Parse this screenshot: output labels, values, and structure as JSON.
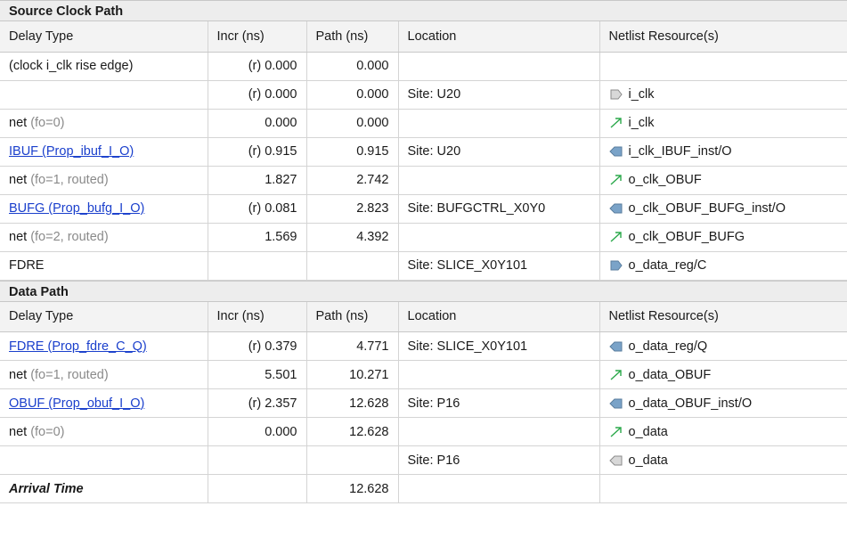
{
  "source": {
    "title": "Source Clock Path",
    "headers": [
      "Delay Type",
      "Incr (ns)",
      "Path (ns)",
      "Location",
      "Netlist Resource(s)"
    ],
    "rows": [
      {
        "type": "(clock i_clk rise edge)",
        "incr": "(r) 0.000",
        "path": "0.000",
        "loc": "",
        "res": "",
        "icon": ""
      },
      {
        "type": "",
        "incr": "(r) 0.000",
        "path": "0.000",
        "loc": "Site: U20",
        "res": "i_clk",
        "icon": "input-port-icon"
      },
      {
        "type": "net",
        "fo": "(fo=0)",
        "incr": "0.000",
        "path": "0.000",
        "loc": "",
        "res": "i_clk",
        "icon": "net-arrow-icon"
      },
      {
        "type": "IBUF (Prop_ibuf_I_O)",
        "link": true,
        "incr": "(r) 0.915",
        "path": "0.915",
        "loc": "Site: U20",
        "res": "i_clk_IBUF_inst/O",
        "icon": "cell-pin-icon"
      },
      {
        "type": "net",
        "fo": "(fo=1, routed)",
        "incr": "1.827",
        "path": "2.742",
        "loc": "",
        "res": "o_clk_OBUF",
        "icon": "net-arrow-icon"
      },
      {
        "type": "BUFG (Prop_bufg_I_O)",
        "link": true,
        "incr": "(r) 0.081",
        "path": "2.823",
        "loc": "Site: BUFGCTRL_X0Y0",
        "res": "o_clk_OBUF_BUFG_inst/O",
        "icon": "cell-pin-icon"
      },
      {
        "type": "net",
        "fo": "(fo=2, routed)",
        "incr": "1.569",
        "path": "4.392",
        "loc": "",
        "res": "o_clk_OBUF_BUFG",
        "icon": "net-arrow-icon"
      },
      {
        "type": "FDRE",
        "incr": "",
        "path": "",
        "loc": "Site: SLICE_X0Y101",
        "res": "o_data_reg/C",
        "icon": "clock-pin-icon"
      }
    ]
  },
  "data": {
    "title": "Data Path",
    "headers": [
      "Delay Type",
      "Incr (ns)",
      "Path (ns)",
      "Location",
      "Netlist Resource(s)"
    ],
    "rows": [
      {
        "type": "FDRE (Prop_fdre_C_Q)",
        "link": true,
        "incr": "(r) 0.379",
        "path": "4.771",
        "loc": "Site: SLICE_X0Y101",
        "res": "o_data_reg/Q",
        "icon": "cell-pin-icon"
      },
      {
        "type": "net",
        "fo": "(fo=1, routed)",
        "incr": "5.501",
        "path": "10.271",
        "loc": "",
        "res": "o_data_OBUF",
        "icon": "net-arrow-icon"
      },
      {
        "type": "OBUF (Prop_obuf_I_O)",
        "link": true,
        "incr": "(r) 2.357",
        "path": "12.628",
        "loc": "Site: P16",
        "res": "o_data_OBUF_inst/O",
        "icon": "cell-pin-icon"
      },
      {
        "type": "net",
        "fo": "(fo=0)",
        "incr": "0.000",
        "path": "12.628",
        "loc": "",
        "res": "o_data",
        "icon": "net-arrow-icon"
      },
      {
        "type": "",
        "incr": "",
        "path": "",
        "loc": "Site: P16",
        "res": "o_data",
        "icon": "output-port-icon"
      },
      {
        "type": "Arrival Time",
        "bold": true,
        "incr": "",
        "path": "12.628",
        "loc": "",
        "res": "",
        "icon": ""
      }
    ]
  },
  "colors": {
    "link": "#1a3fcc",
    "muted": "#8a8a8a",
    "net_arrow": "#2aa84a",
    "pin_fill": "#7aa3c8",
    "port_fill": "#d8d8d8"
  }
}
